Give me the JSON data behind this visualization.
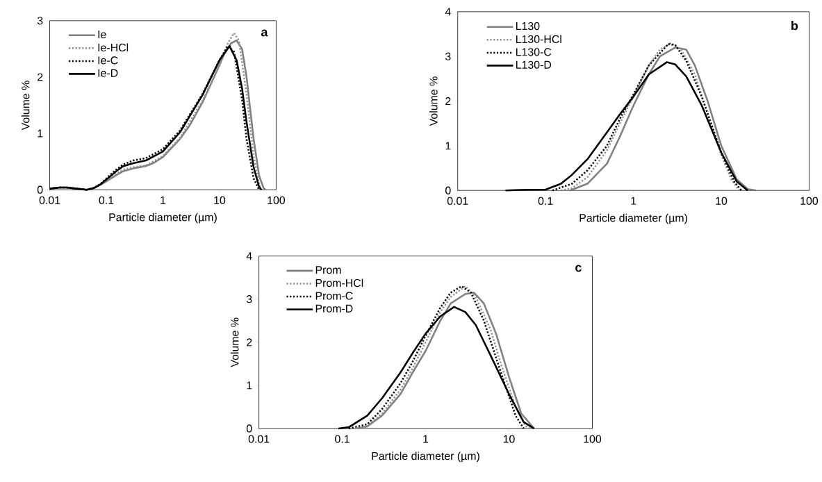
{
  "chart_data": [
    {
      "type": "line",
      "xlabel": "Particle diameter (µm)",
      "ylabel": "Volume %",
      "annotations": [
        "a"
      ],
      "log": "x",
      "legend": "top left",
      "xlim": [
        0.01,
        100
      ],
      "ylim": [
        0,
        3
      ],
      "xticks": [
        0.01,
        0.1,
        1,
        10,
        100
      ],
      "yticks": [
        0,
        1,
        2,
        3
      ],
      "series": [
        {
          "name": "Ie",
          "color": "#808080",
          "line_style": "solid",
          "x": [
            0.01,
            0.015,
            0.02,
            0.03,
            0.045,
            0.06,
            0.08,
            0.1,
            0.15,
            0.2,
            0.3,
            0.5,
            0.7,
            1,
            2,
            3,
            5,
            8,
            12,
            16,
            20,
            25,
            30,
            40,
            50,
            60,
            65
          ],
          "values": [
            0.02,
            0.04,
            0.04,
            0.02,
            0,
            0.03,
            0.09,
            0.15,
            0.26,
            0.33,
            0.38,
            0.42,
            0.48,
            0.58,
            0.9,
            1.15,
            1.55,
            2.0,
            2.4,
            2.6,
            2.65,
            2.5,
            2.0,
            0.9,
            0.25,
            0.03,
            0
          ]
        },
        {
          "name": "Ie-HCl",
          "color": "#909090",
          "line_style": "dotted",
          "x": [
            0.01,
            0.015,
            0.02,
            0.03,
            0.045,
            0.06,
            0.08,
            0.1,
            0.15,
            0.2,
            0.3,
            0.5,
            1,
            2,
            5,
            10,
            14,
            18,
            22,
            30,
            40,
            50,
            55
          ],
          "values": [
            0.02,
            0.04,
            0.04,
            0.02,
            0,
            0.03,
            0.1,
            0.16,
            0.28,
            0.36,
            0.4,
            0.43,
            0.6,
            0.92,
            1.58,
            2.2,
            2.6,
            2.78,
            2.65,
            1.7,
            0.6,
            0.1,
            0
          ]
        },
        {
          "name": "Ie-C",
          "color": "#000000",
          "line_style": "dotted",
          "x": [
            0.01,
            0.015,
            0.02,
            0.03,
            0.045,
            0.06,
            0.08,
            0.1,
            0.15,
            0.2,
            0.3,
            0.5,
            1,
            2,
            5,
            10,
            14,
            18,
            25,
            30,
            40,
            50
          ],
          "values": [
            0.02,
            0.04,
            0.04,
            0.02,
            0,
            0.03,
            0.11,
            0.2,
            0.36,
            0.45,
            0.52,
            0.56,
            0.72,
            1.05,
            1.7,
            2.3,
            2.55,
            2.45,
            1.6,
            0.9,
            0.2,
            0
          ]
        },
        {
          "name": "Ie-D",
          "color": "#000000",
          "line_style": "solid",
          "x": [
            0.01,
            0.015,
            0.02,
            0.03,
            0.045,
            0.06,
            0.08,
            0.1,
            0.15,
            0.2,
            0.3,
            0.5,
            1,
            2,
            5,
            10,
            15,
            20,
            25,
            30,
            40,
            50,
            55
          ],
          "values": [
            0.02,
            0.04,
            0.04,
            0.02,
            0,
            0.03,
            0.1,
            0.18,
            0.33,
            0.42,
            0.47,
            0.52,
            0.68,
            1.02,
            1.68,
            2.3,
            2.55,
            2.3,
            1.8,
            1.2,
            0.4,
            0.05,
            0
          ]
        }
      ]
    },
    {
      "type": "line",
      "xlabel": "Particle diameter (µm)",
      "ylabel": "Volume %",
      "annotations": [
        "b"
      ],
      "log": "x",
      "legend": "top left",
      "xlim": [
        0.01,
        100
      ],
      "ylim": [
        0,
        4
      ],
      "xticks": [
        0.01,
        0.1,
        1,
        10,
        100
      ],
      "yticks": [
        0,
        1,
        2,
        3,
        4
      ],
      "series": [
        {
          "name": "L130",
          "color": "#808080",
          "line_style": "solid",
          "x": [
            0.19,
            0.3,
            0.5,
            0.7,
            1,
            1.5,
            2,
            3,
            4,
            5,
            7,
            10,
            15,
            20,
            25
          ],
          "values": [
            0,
            0.15,
            0.6,
            1.2,
            1.9,
            2.6,
            3.0,
            3.2,
            3.15,
            2.8,
            2.0,
            1.0,
            0.25,
            0.03,
            0
          ]
        },
        {
          "name": "L130-HCl",
          "color": "#909090",
          "line_style": "dotted",
          "x": [
            0.15,
            0.2,
            0.3,
            0.5,
            0.7,
            1,
            1.5,
            2,
            2.7,
            3.5,
            5,
            7,
            10,
            13,
            16
          ],
          "values": [
            0,
            0.05,
            0.3,
            0.9,
            1.5,
            2.1,
            2.8,
            3.15,
            3.3,
            3.15,
            2.6,
            1.7,
            0.8,
            0.25,
            0
          ]
        },
        {
          "name": "L130-C",
          "color": "#000000",
          "line_style": "dotted",
          "x": [
            0.12,
            0.2,
            0.3,
            0.5,
            0.7,
            1,
            1.5,
            2.5,
            3,
            4,
            6,
            10,
            14,
            17
          ],
          "values": [
            0,
            0.15,
            0.45,
            1.0,
            1.6,
            2.15,
            2.8,
            3.28,
            3.25,
            2.9,
            2.1,
            0.85,
            0.2,
            0
          ]
        },
        {
          "name": "L130-D",
          "color": "#000000",
          "line_style": "solid",
          "x": [
            0.035,
            0.05,
            0.1,
            0.15,
            0.2,
            0.3,
            0.5,
            0.7,
            1,
            1.5,
            2.4,
            3,
            4,
            6,
            10,
            15,
            20
          ],
          "values": [
            0,
            0.01,
            0.02,
            0.15,
            0.35,
            0.7,
            1.3,
            1.7,
            2.1,
            2.6,
            2.87,
            2.82,
            2.55,
            1.9,
            0.85,
            0.2,
            0
          ]
        }
      ]
    },
    {
      "type": "line",
      "xlabel": "Particle diameter (µm)",
      "ylabel": "Volume %",
      "annotations": [
        "c"
      ],
      "log": "x",
      "legend": "top left",
      "xlim": [
        0.01,
        100
      ],
      "ylim": [
        0,
        4
      ],
      "xticks": [
        0.01,
        0.1,
        1,
        10,
        100
      ],
      "yticks": [
        0,
        1,
        2,
        3,
        4
      ],
      "series": [
        {
          "name": "Prom",
          "color": "#808080",
          "line_style": "solid",
          "x": [
            0.15,
            0.2,
            0.3,
            0.5,
            0.7,
            1,
            1.5,
            2,
            3,
            3.8,
            5,
            7,
            10,
            14,
            20
          ],
          "values": [
            0,
            0.05,
            0.3,
            0.8,
            1.3,
            1.8,
            2.5,
            2.9,
            3.12,
            3.15,
            2.9,
            2.2,
            1.2,
            0.35,
            0
          ]
        },
        {
          "name": "Prom-HCl",
          "color": "#909090",
          "line_style": "dotted",
          "x": [
            0.15,
            0.2,
            0.3,
            0.5,
            0.7,
            1,
            1.5,
            2,
            3,
            4,
            6,
            8,
            12,
            16,
            18
          ],
          "values": [
            0,
            0.05,
            0.35,
            0.9,
            1.4,
            2.0,
            2.7,
            3.05,
            3.3,
            3.05,
            2.3,
            1.5,
            0.5,
            0.05,
            0
          ]
        },
        {
          "name": "Prom-C",
          "color": "#000000",
          "line_style": "dotted",
          "x": [
            0.12,
            0.2,
            0.3,
            0.5,
            0.7,
            1,
            1.5,
            2,
            2.7,
            3.5,
            5,
            8,
            12,
            15
          ],
          "values": [
            0,
            0.1,
            0.45,
            1.05,
            1.55,
            2.15,
            2.8,
            3.15,
            3.3,
            3.15,
            2.5,
            1.3,
            0.3,
            0
          ]
        },
        {
          "name": "Prom-D",
          "color": "#000000",
          "line_style": "solid",
          "x": [
            0.09,
            0.12,
            0.2,
            0.3,
            0.5,
            0.7,
            1,
            1.5,
            2.2,
            3,
            4,
            6,
            10,
            15,
            20
          ],
          "values": [
            0,
            0.03,
            0.3,
            0.7,
            1.3,
            1.75,
            2.2,
            2.6,
            2.82,
            2.7,
            2.4,
            1.7,
            0.8,
            0.15,
            0
          ]
        }
      ]
    }
  ]
}
